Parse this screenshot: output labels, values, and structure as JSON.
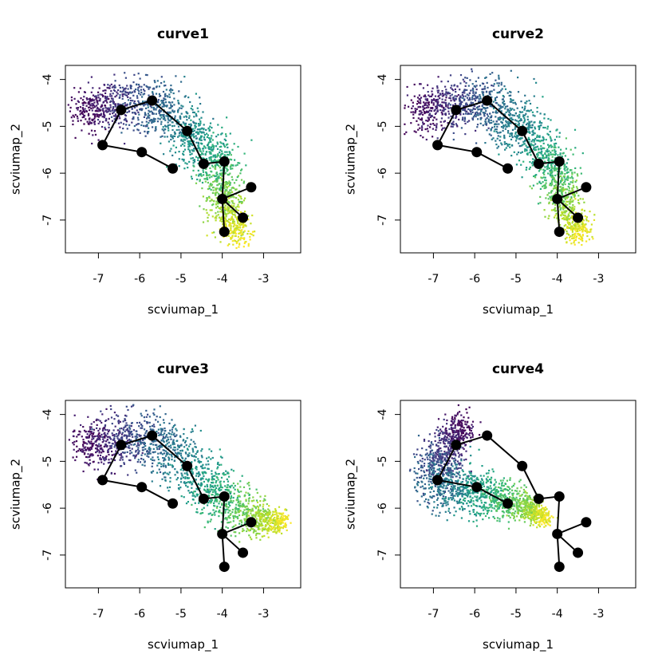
{
  "chart_data": [
    {
      "type": "scatter",
      "title": "curve1",
      "xlabel": "scviumap_1",
      "ylabel": "scviumap_2",
      "xlim": [
        -7.8,
        -2.1
      ],
      "ylim": [
        -7.7,
        -3.7
      ],
      "xticks": [
        -7,
        -6,
        -5,
        -4,
        -3
      ],
      "yticks": [
        -7,
        -6,
        -5,
        -4
      ],
      "colormap": "viridis",
      "cloud_spine": [
        {
          "x": -7.4,
          "y": -4.7,
          "w": 0.3
        },
        {
          "x": -6.9,
          "y": -4.55,
          "w": 0.35
        },
        {
          "x": -6.2,
          "y": -4.45,
          "w": 0.38
        },
        {
          "x": -5.6,
          "y": -4.55,
          "w": 0.38
        },
        {
          "x": -5.0,
          "y": -4.95,
          "w": 0.4
        },
        {
          "x": -4.5,
          "y": -5.4,
          "w": 0.4
        },
        {
          "x": -4.1,
          "y": -5.85,
          "w": 0.35
        },
        {
          "x": -4.0,
          "y": -6.35,
          "w": 0.32
        },
        {
          "x": -3.9,
          "y": -6.85,
          "w": 0.3
        },
        {
          "x": -3.6,
          "y": -7.35,
          "w": 0.18
        }
      ],
      "nodes": [
        {
          "id": "A",
          "x": -6.9,
          "y": -5.4
        },
        {
          "id": "B",
          "x": -5.95,
          "y": -5.55
        },
        {
          "id": "C",
          "x": -5.2,
          "y": -5.9
        },
        {
          "id": "D",
          "x": -6.45,
          "y": -4.65
        },
        {
          "id": "E",
          "x": -5.7,
          "y": -4.45
        },
        {
          "id": "F",
          "x": -4.85,
          "y": -5.1
        },
        {
          "id": "G",
          "x": -4.45,
          "y": -5.8
        },
        {
          "id": "H",
          "x": -3.95,
          "y": -5.75
        },
        {
          "id": "I",
          "x": -4.0,
          "y": -6.55
        },
        {
          "id": "J",
          "x": -3.3,
          "y": -6.3
        },
        {
          "id": "K",
          "x": -3.5,
          "y": -6.95
        },
        {
          "id": "L",
          "x": -3.95,
          "y": -7.25
        }
      ],
      "edges": [
        [
          "C",
          "B"
        ],
        [
          "B",
          "A"
        ],
        [
          "A",
          "D"
        ],
        [
          "D",
          "E"
        ],
        [
          "E",
          "F"
        ],
        [
          "F",
          "G"
        ],
        [
          "G",
          "H"
        ],
        [
          "H",
          "I"
        ],
        [
          "I",
          "J"
        ],
        [
          "I",
          "K"
        ],
        [
          "I",
          "L"
        ]
      ]
    },
    {
      "type": "scatter",
      "title": "curve2",
      "xlabel": "scviumap_1",
      "ylabel": "scviumap_2",
      "xlim": [
        -7.8,
        -2.1
      ],
      "ylim": [
        -7.7,
        -3.7
      ],
      "xticks": [
        -7,
        -6,
        -5,
        -4,
        -3
      ],
      "yticks": [
        -7,
        -6,
        -5,
        -4
      ],
      "colormap": "viridis",
      "cloud_spine": [
        {
          "x": -7.4,
          "y": -4.7,
          "w": 0.3
        },
        {
          "x": -6.9,
          "y": -4.55,
          "w": 0.35
        },
        {
          "x": -6.2,
          "y": -4.45,
          "w": 0.38
        },
        {
          "x": -5.6,
          "y": -4.55,
          "w": 0.38
        },
        {
          "x": -5.0,
          "y": -4.95,
          "w": 0.4
        },
        {
          "x": -4.5,
          "y": -5.4,
          "w": 0.4
        },
        {
          "x": -4.1,
          "y": -5.85,
          "w": 0.35
        },
        {
          "x": -3.95,
          "y": -6.4,
          "w": 0.3
        },
        {
          "x": -3.7,
          "y": -6.9,
          "w": 0.28
        },
        {
          "x": -3.45,
          "y": -7.3,
          "w": 0.18
        }
      ],
      "nodes": [
        {
          "id": "A",
          "x": -6.9,
          "y": -5.4
        },
        {
          "id": "B",
          "x": -5.95,
          "y": -5.55
        },
        {
          "id": "C",
          "x": -5.2,
          "y": -5.9
        },
        {
          "id": "D",
          "x": -6.45,
          "y": -4.65
        },
        {
          "id": "E",
          "x": -5.7,
          "y": -4.45
        },
        {
          "id": "F",
          "x": -4.85,
          "y": -5.1
        },
        {
          "id": "G",
          "x": -4.45,
          "y": -5.8
        },
        {
          "id": "H",
          "x": -3.95,
          "y": -5.75
        },
        {
          "id": "I",
          "x": -4.0,
          "y": -6.55
        },
        {
          "id": "J",
          "x": -3.3,
          "y": -6.3
        },
        {
          "id": "K",
          "x": -3.5,
          "y": -6.95
        },
        {
          "id": "L",
          "x": -3.95,
          "y": -7.25
        }
      ],
      "edges": [
        [
          "C",
          "B"
        ],
        [
          "B",
          "A"
        ],
        [
          "A",
          "D"
        ],
        [
          "D",
          "E"
        ],
        [
          "E",
          "F"
        ],
        [
          "F",
          "G"
        ],
        [
          "G",
          "H"
        ],
        [
          "H",
          "I"
        ],
        [
          "I",
          "J"
        ],
        [
          "I",
          "K"
        ],
        [
          "I",
          "L"
        ]
      ]
    },
    {
      "type": "scatter",
      "title": "curve3",
      "xlabel": "scviumap_1",
      "ylabel": "scviumap_2",
      "xlim": [
        -7.8,
        -2.1
      ],
      "ylim": [
        -7.7,
        -3.7
      ],
      "xticks": [
        -7,
        -6,
        -5,
        -4,
        -3
      ],
      "yticks": [
        -7,
        -6,
        -5,
        -4
      ],
      "colormap": "viridis",
      "cloud_spine": [
        {
          "x": -7.4,
          "y": -4.7,
          "w": 0.3
        },
        {
          "x": -6.9,
          "y": -4.55,
          "w": 0.35
        },
        {
          "x": -6.2,
          "y": -4.45,
          "w": 0.38
        },
        {
          "x": -5.6,
          "y": -4.55,
          "w": 0.38
        },
        {
          "x": -5.0,
          "y": -4.95,
          "w": 0.4
        },
        {
          "x": -4.5,
          "y": -5.4,
          "w": 0.4
        },
        {
          "x": -4.0,
          "y": -5.8,
          "w": 0.38
        },
        {
          "x": -3.5,
          "y": -6.1,
          "w": 0.32
        },
        {
          "x": -3.0,
          "y": -6.25,
          "w": 0.22
        },
        {
          "x": -2.5,
          "y": -6.3,
          "w": 0.1
        }
      ],
      "nodes": [
        {
          "id": "A",
          "x": -6.9,
          "y": -5.4
        },
        {
          "id": "B",
          "x": -5.95,
          "y": -5.55
        },
        {
          "id": "C",
          "x": -5.2,
          "y": -5.9
        },
        {
          "id": "D",
          "x": -6.45,
          "y": -4.65
        },
        {
          "id": "E",
          "x": -5.7,
          "y": -4.45
        },
        {
          "id": "F",
          "x": -4.85,
          "y": -5.1
        },
        {
          "id": "G",
          "x": -4.45,
          "y": -5.8
        },
        {
          "id": "H",
          "x": -3.95,
          "y": -5.75
        },
        {
          "id": "I",
          "x": -4.0,
          "y": -6.55
        },
        {
          "id": "J",
          "x": -3.3,
          "y": -6.3
        },
        {
          "id": "K",
          "x": -3.5,
          "y": -6.95
        },
        {
          "id": "L",
          "x": -3.95,
          "y": -7.25
        }
      ],
      "edges": [
        [
          "C",
          "B"
        ],
        [
          "B",
          "A"
        ],
        [
          "A",
          "D"
        ],
        [
          "D",
          "E"
        ],
        [
          "E",
          "F"
        ],
        [
          "F",
          "G"
        ],
        [
          "G",
          "H"
        ],
        [
          "H",
          "I"
        ],
        [
          "I",
          "J"
        ],
        [
          "I",
          "K"
        ],
        [
          "I",
          "L"
        ]
      ]
    },
    {
      "type": "scatter",
      "title": "curve4",
      "xlabel": "scviumap_1",
      "ylabel": "scviumap_2",
      "xlim": [
        -7.8,
        -2.1
      ],
      "ylim": [
        -7.7,
        -3.7
      ],
      "xticks": [
        -7,
        -6,
        -5,
        -4,
        -3
      ],
      "yticks": [
        -7,
        -6,
        -5,
        -4
      ],
      "colormap": "viridis",
      "cloud_spine": [
        {
          "x": -6.3,
          "y": -4.2,
          "w": 0.22
        },
        {
          "x": -6.6,
          "y": -4.6,
          "w": 0.3
        },
        {
          "x": -6.95,
          "y": -5.1,
          "w": 0.38
        },
        {
          "x": -6.9,
          "y": -5.5,
          "w": 0.38
        },
        {
          "x": -6.3,
          "y": -5.6,
          "w": 0.36
        },
        {
          "x": -5.7,
          "y": -5.7,
          "w": 0.32
        },
        {
          "x": -5.1,
          "y": -5.85,
          "w": 0.26
        },
        {
          "x": -4.6,
          "y": -6.05,
          "w": 0.18
        },
        {
          "x": -4.3,
          "y": -6.2,
          "w": 0.1
        }
      ],
      "nodes": [
        {
          "id": "A",
          "x": -6.9,
          "y": -5.4
        },
        {
          "id": "B",
          "x": -5.95,
          "y": -5.55
        },
        {
          "id": "C",
          "x": -5.2,
          "y": -5.9
        },
        {
          "id": "D",
          "x": -6.45,
          "y": -4.65
        },
        {
          "id": "E",
          "x": -5.7,
          "y": -4.45
        },
        {
          "id": "F",
          "x": -4.85,
          "y": -5.1
        },
        {
          "id": "G",
          "x": -4.45,
          "y": -5.8
        },
        {
          "id": "H",
          "x": -3.95,
          "y": -5.75
        },
        {
          "id": "I",
          "x": -4.0,
          "y": -6.55
        },
        {
          "id": "J",
          "x": -3.3,
          "y": -6.3
        },
        {
          "id": "K",
          "x": -3.5,
          "y": -6.95
        },
        {
          "id": "L",
          "x": -3.95,
          "y": -7.25
        }
      ],
      "edges": [
        [
          "C",
          "B"
        ],
        [
          "B",
          "A"
        ],
        [
          "A",
          "D"
        ],
        [
          "D",
          "E"
        ],
        [
          "E",
          "F"
        ],
        [
          "F",
          "G"
        ],
        [
          "G",
          "H"
        ],
        [
          "H",
          "I"
        ],
        [
          "I",
          "J"
        ],
        [
          "I",
          "K"
        ],
        [
          "I",
          "L"
        ]
      ]
    }
  ]
}
